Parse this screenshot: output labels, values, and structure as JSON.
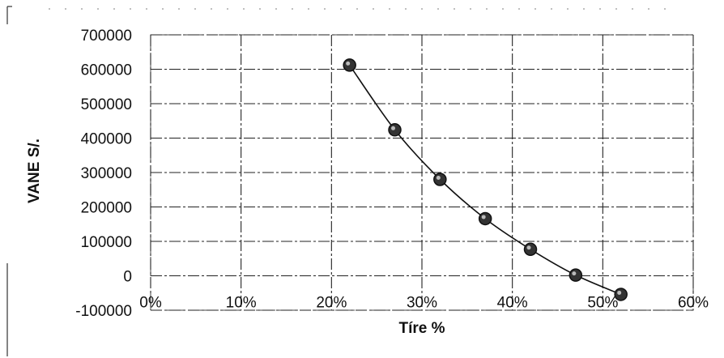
{
  "chart_data": {
    "type": "scatter",
    "xlabel": "Tíre %",
    "ylabel": "VANE S/.",
    "xlim": [
      0,
      0.6
    ],
    "ylim": [
      -100000,
      700000
    ],
    "x_ticks": [
      "0%",
      "10%",
      "20%",
      "30%",
      "40%",
      "50%",
      "60%"
    ],
    "y_ticks": [
      "700000",
      "600000",
      "500000",
      "400000",
      "300000",
      "200000",
      "100000",
      "0",
      "-100000"
    ],
    "grid": true,
    "legend": "none",
    "trendline": "smooth",
    "series": [
      {
        "x": [
          0.22,
          0.27,
          0.32,
          0.37,
          0.42,
          0.47,
          0.52
        ],
        "y": [
          612000,
          424000,
          280000,
          166000,
          77000,
          2000,
          -54000
        ]
      }
    ],
    "colors": {
      "marker": "#333333",
      "line": "#111111",
      "grid": "#222222"
    }
  }
}
